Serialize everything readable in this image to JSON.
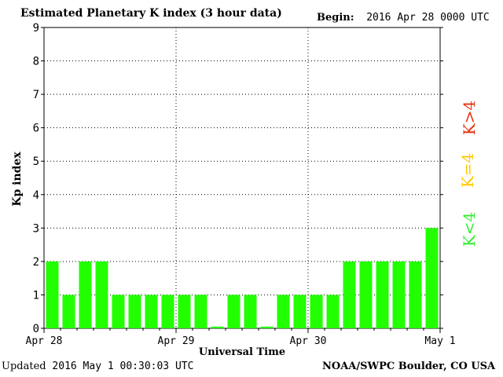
{
  "header": {
    "title": "Estimated Planetary K index (3 hour data)",
    "begin_label": "Begin:",
    "begin_value": "2016 Apr 28 0000 UTC"
  },
  "footer": {
    "updated_label": "Updated",
    "updated_value": "2016 May  1 00:30:03 UTC",
    "credit": "NOAA/SWPC Boulder, CO USA"
  },
  "legend": {
    "high": "K>4",
    "equal": "K=4",
    "low": "K<4"
  },
  "colors": {
    "low": "#22ff00",
    "equal": "#ffc800",
    "high": "#e83010"
  },
  "chart_data": {
    "type": "bar",
    "title": "Estimated Planetary K index (3 hour data)",
    "xlabel": "Universal Time",
    "ylabel": "Kp index",
    "ylim": [
      0,
      9
    ],
    "yticks": [
      "0",
      "1",
      "2",
      "3",
      "4",
      "5",
      "6",
      "7",
      "8",
      "9"
    ],
    "xticks": [
      "Apr 28",
      "Apr 29",
      "Apr 30",
      "May 1"
    ],
    "grid": true,
    "interval_hours": 3,
    "values": [
      2,
      1,
      2,
      2,
      1,
      1,
      1,
      1,
      1,
      1,
      0.05,
      1,
      1,
      0.05,
      1,
      1,
      1,
      1,
      2,
      2,
      2,
      2,
      2,
      3
    ]
  }
}
